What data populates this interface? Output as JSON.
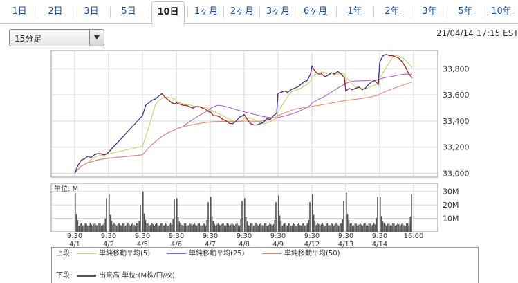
{
  "tabs": [
    "1日",
    "2日",
    "3日",
    "5日",
    "10日",
    "1ヶ月",
    "2ヶ月",
    "3ヶ月",
    "6ヶ月",
    "1年",
    "2年",
    "3年",
    "5年",
    "10年"
  ],
  "active_tab": "10日",
  "interval_select": {
    "value": "15分足"
  },
  "timestamp": "21/04/14 17:15 EST",
  "volume_unit_label": "単位: M",
  "legend": {
    "upper_label": "上段:",
    "lower_label": "下段:",
    "items": [
      {
        "label": "単純移動平均(5)",
        "color": "#b8d25a"
      },
      {
        "label": "単純移動平均(25)",
        "color": "#a05ad6"
      },
      {
        "label": "単純移動平均(50)",
        "color": "#e8836a"
      }
    ],
    "volume_item": {
      "label": "出来高 単位:(M株/口/枚)",
      "color": "#555555"
    }
  },
  "colors": {
    "price": "#a02018",
    "up": "#1a3fae",
    "volume": "#555555",
    "grid": "#d6d6d6"
  },
  "chart_data": {
    "type": "line",
    "title": "",
    "xlabel": "",
    "ylabel": "",
    "ylim": [
      32970,
      33940
    ],
    "yticks": [
      33000,
      33200,
      33400,
      33600,
      33800
    ],
    "ytick_labels": [
      "33,000",
      "33,200",
      "33,400",
      "33,600",
      "33,800"
    ],
    "xtick_labels": [
      {
        "t": "9:30",
        "d": "4/1",
        "session": 0
      },
      {
        "t": "9:30",
        "d": "4/2",
        "session": 1
      },
      {
        "t": "9:30",
        "d": "4/5",
        "session": 2
      },
      {
        "t": "9:30",
        "d": "4/6",
        "session": 3
      },
      {
        "t": "9:30",
        "d": "4/7",
        "session": 4
      },
      {
        "t": "9:30",
        "d": "4/8",
        "session": 5
      },
      {
        "t": "9:30",
        "d": "4/9",
        "session": 6
      },
      {
        "t": "9:30",
        "d": "4/12",
        "session": 7
      },
      {
        "t": "9:30",
        "d": "4/13",
        "session": 8
      },
      {
        "t": "9:30",
        "d": "4/14",
        "session": 9
      },
      {
        "t": "16:00",
        "d": "",
        "session": 10
      }
    ],
    "sessions": [
      "4/1",
      "4/2",
      "4/5",
      "4/6",
      "4/7",
      "4/8",
      "4/9",
      "4/12",
      "4/13",
      "4/14"
    ],
    "price_series": [
      {
        "session": "4/1",
        "values": [
          33000,
          33060,
          33100,
          33110,
          33130,
          33120,
          33140,
          33150,
          33150,
          33140,
          33150
        ]
      },
      {
        "session": "4/2",
        "values": []
      },
      {
        "session": "4/5",
        "values": [
          33440,
          33520,
          33540,
          33560,
          33570,
          33590,
          33610,
          33580,
          33560,
          33540,
          33530
        ]
      },
      {
        "session": "4/6",
        "values": [
          33540,
          33530,
          33520,
          33520,
          33510,
          33500,
          33510,
          33510,
          33500,
          33490,
          33470
        ]
      },
      {
        "session": "4/7",
        "values": [
          33470,
          33440,
          33440,
          33430,
          33410,
          33400,
          33380,
          33380,
          33400,
          33430,
          33440
        ]
      },
      {
        "session": "4/8",
        "values": [
          33450,
          33410,
          33380,
          33370,
          33370,
          33380,
          33390,
          33420,
          33410,
          33440,
          33460
        ]
      },
      {
        "session": "4/9",
        "values": [
          33610,
          33620,
          33630,
          33620,
          33640,
          33650,
          33660,
          33680,
          33700,
          33710,
          33760
        ]
      },
      {
        "session": "4/12",
        "values": [
          33820,
          33780,
          33760,
          33760,
          33740,
          33750,
          33770,
          33760,
          33780,
          33760,
          33730
        ]
      },
      {
        "session": "4/13",
        "values": [
          33630,
          33650,
          33640,
          33650,
          33660,
          33640,
          33650,
          33680,
          33700,
          33710,
          33680
        ]
      },
      {
        "session": "4/14",
        "values": [
          33850,
          33900,
          33910,
          33900,
          33900,
          33890,
          33880,
          33850,
          33810,
          33760,
          33730
        ]
      }
    ],
    "volume": {
      "yticks": [
        10,
        20,
        30
      ],
      "ytick_labels": [
        "10M",
        "20M",
        "30M"
      ],
      "ylim": [
        0,
        36
      ],
      "open_spike": [
        29,
        28,
        30,
        25,
        26,
        25,
        27,
        28,
        29,
        26
      ],
      "close_spike": [
        25,
        20,
        24,
        22,
        23,
        22,
        22,
        23,
        26,
        28
      ]
    },
    "moving_averages": [
      "単純移動平均(5)",
      "単純移動平均(25)",
      "単純移動平均(50)"
    ]
  }
}
